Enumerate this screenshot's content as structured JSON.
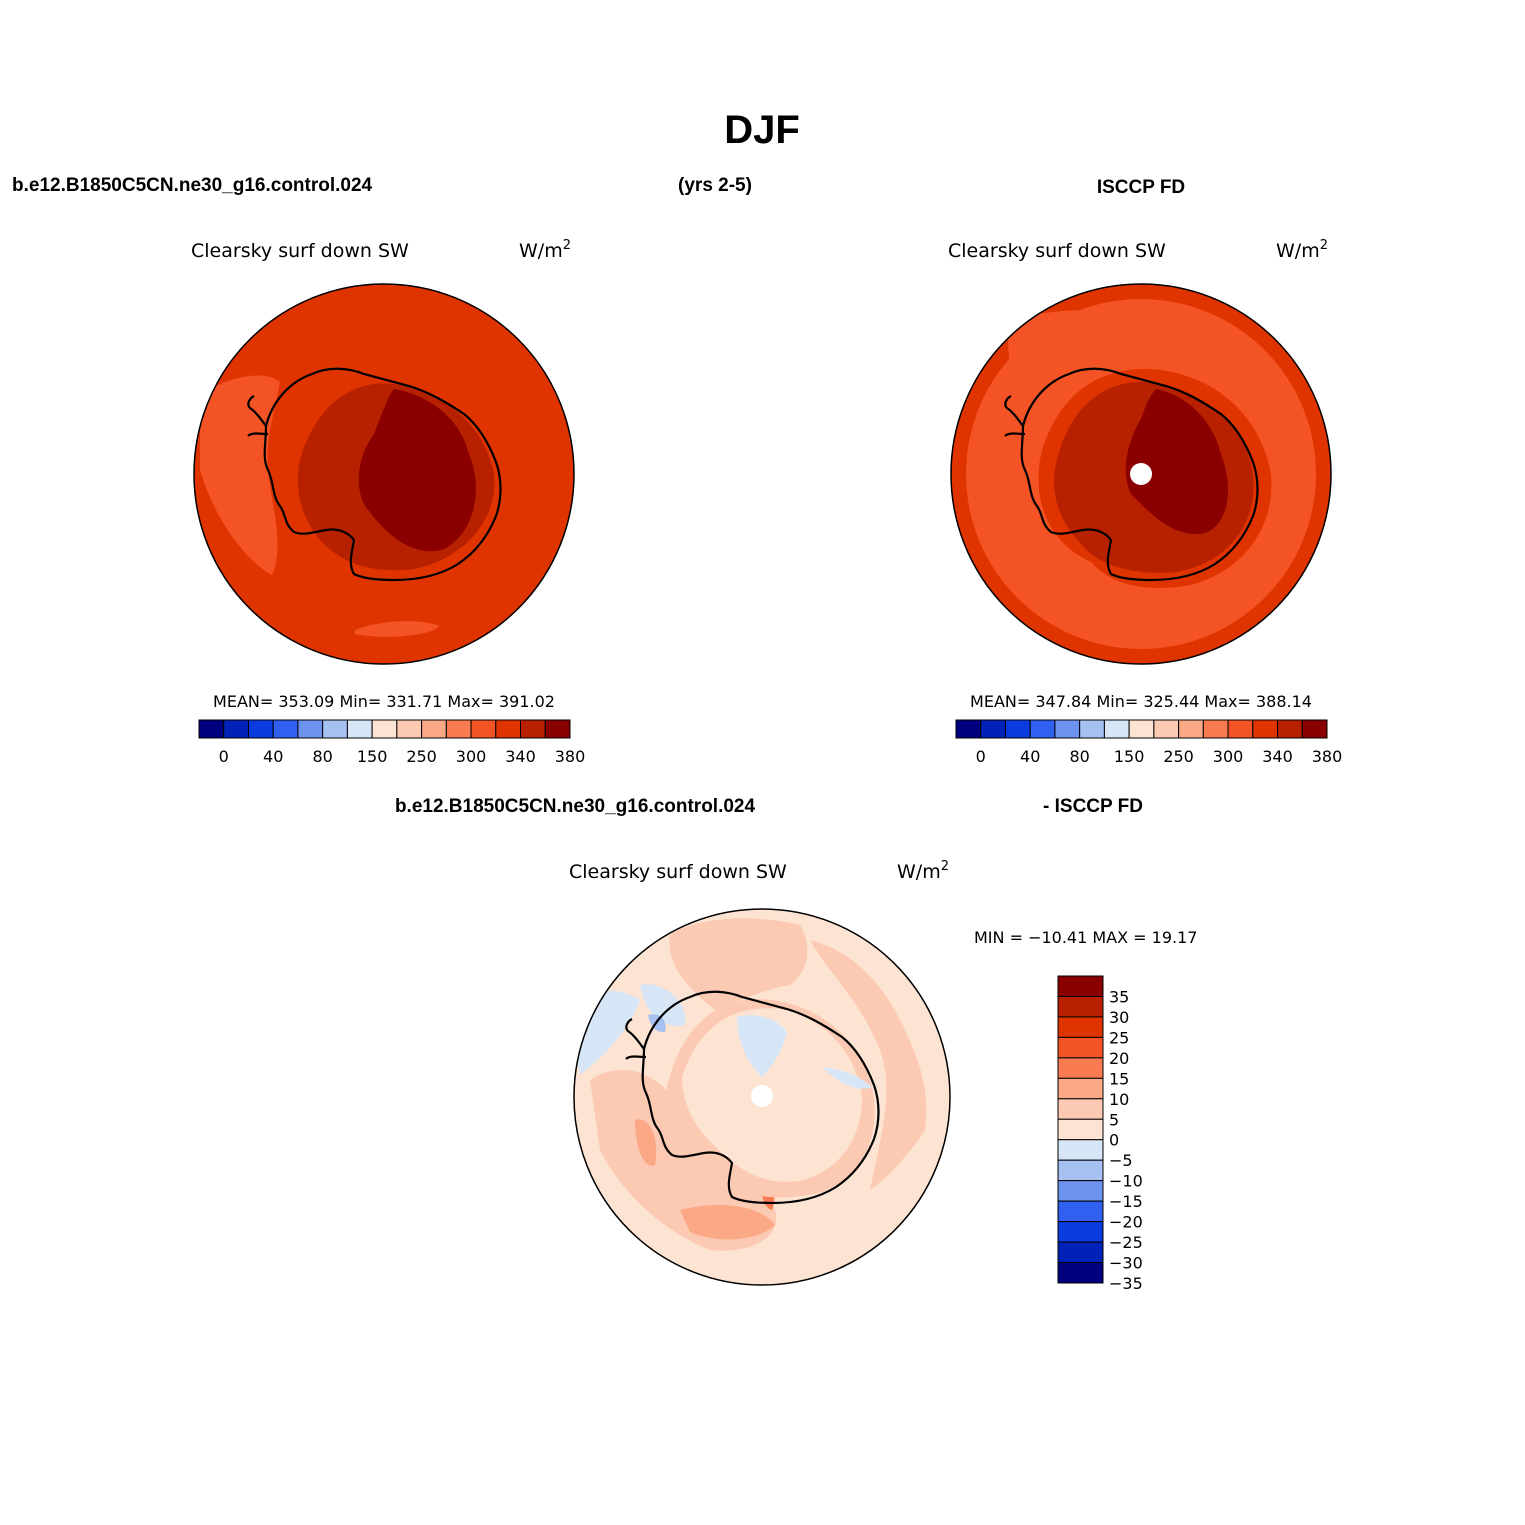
{
  "page_title": "DJF",
  "header": {
    "case_name": "b.e12.B1850C5CN.ne30_g16.control.024",
    "years": "(yrs 2-5)",
    "obs_name": "ISCCP FD"
  },
  "diff_header": {
    "case_name": "b.e12.B1850C5CN.ne30_g16.control.024",
    "obs_name": "- ISCCP FD"
  },
  "panels": {
    "model": {
      "variable": "Clearsky surf down SW",
      "units": "W/m",
      "units_sup": "2",
      "stats": "MEAN= 353.09   Min= 331.71   Max= 391.02"
    },
    "obs": {
      "variable": "Clearsky surf down SW",
      "units": "W/m",
      "units_sup": "2",
      "stats": "MEAN= 347.84   Min= 325.44   Max= 388.14"
    },
    "diff": {
      "variable": "Clearsky surf down SW",
      "units": "W/m",
      "units_sup": "2",
      "stats": "MIN = −10.41 MAX =  19.17"
    }
  },
  "colorbar_abs": {
    "colors": [
      "#00007f",
      "#0022b8",
      "#0a3ce0",
      "#3060f0",
      "#6e92f0",
      "#a6c0f2",
      "#d6e6f7",
      "#fde4d2",
      "#fcc9b2",
      "#fba886",
      "#fa7b52",
      "#f45325",
      "#e03400",
      "#b82100",
      "#8a0000"
    ],
    "tick_labels": [
      "0",
      "40",
      "80",
      "150",
      "250",
      "300",
      "340",
      "380"
    ]
  },
  "colorbar_diff": {
    "colors": [
      "#8a0000",
      "#b82100",
      "#e03400",
      "#f45325",
      "#fa7b52",
      "#fba886",
      "#fcc9b2",
      "#fde4d2",
      "#d6e6f7",
      "#a6c0f2",
      "#6e92f0",
      "#3060f0",
      "#0a3ce0",
      "#0022b8",
      "#00007f"
    ],
    "tick_labels": [
      "35",
      "30",
      "25",
      "20",
      "15",
      "10",
      "5",
      "0",
      "−5",
      "−10",
      "−15",
      "−20",
      "−25",
      "−30",
      "−35"
    ]
  }
}
